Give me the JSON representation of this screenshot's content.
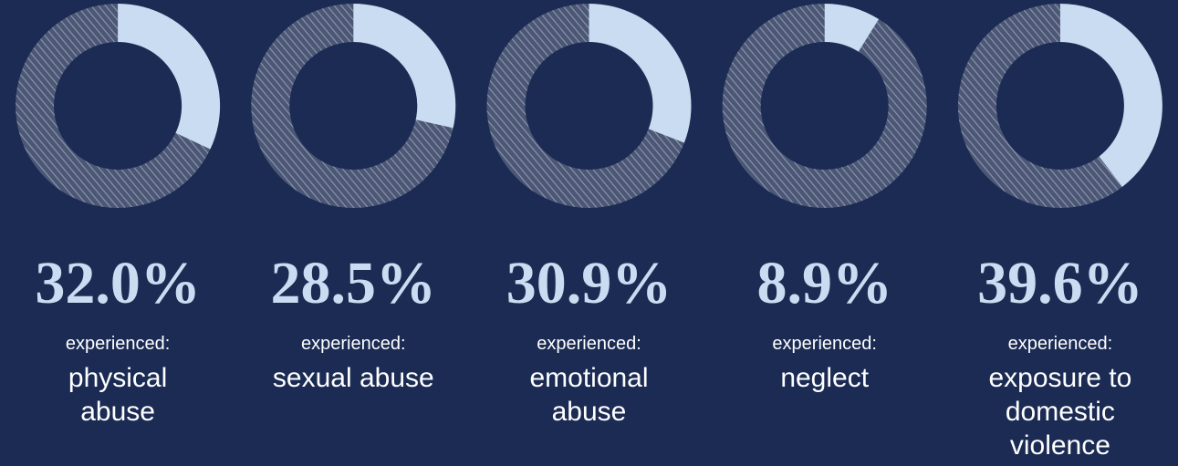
{
  "chart_data": [
    {
      "type": "donut",
      "values": [
        32.0
      ],
      "value_labels": [
        "32.0%"
      ],
      "subtitle": "experienced:",
      "title": "physical abuse",
      "color": "#cadcf1",
      "ylim": [
        0,
        100
      ]
    },
    {
      "type": "donut",
      "values": [
        28.5
      ],
      "value_labels": [
        "28.5%"
      ],
      "subtitle": "experienced:",
      "title": "sexual abuse",
      "color": "#cadcf1",
      "ylim": [
        0,
        100
      ]
    },
    {
      "type": "donut",
      "values": [
        30.9
      ],
      "value_labels": [
        "30.9%"
      ],
      "subtitle": "experienced:",
      "title": "emotional abuse",
      "color": "#cadcf1",
      "ylim": [
        0,
        100
      ]
    },
    {
      "type": "donut",
      "values": [
        8.9
      ],
      "value_labels": [
        "8.9%"
      ],
      "subtitle": "experienced:",
      "title": "neglect",
      "color": "#cadcf1",
      "ylim": [
        0,
        100
      ]
    },
    {
      "type": "donut",
      "values": [
        39.6
      ],
      "value_labels": [
        "39.6%"
      ],
      "subtitle": "experienced:",
      "title": "exposure to domestic violence",
      "color": "#cadcf1",
      "ylim": [
        0,
        100
      ]
    }
  ]
}
